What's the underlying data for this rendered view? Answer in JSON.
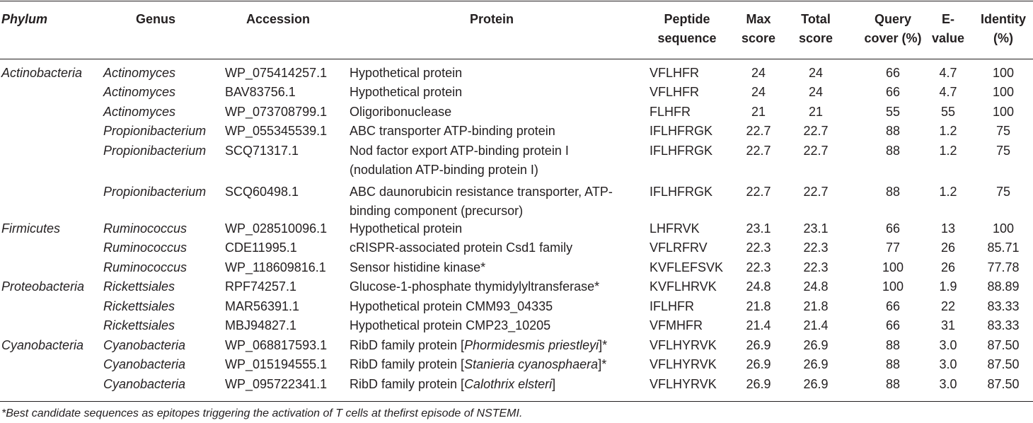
{
  "table": {
    "headers": {
      "phylum": "Phylum",
      "genus": "Genus",
      "accession": "Accession",
      "protein": "Protein",
      "peptide_1": "Peptide",
      "peptide_2": "sequence",
      "max_1": "Max",
      "max_2": "score",
      "total_1": "Total",
      "total_2": "score",
      "query_1": "Query",
      "query_2": "cover (%)",
      "evalue_1": "E-",
      "evalue_2": "value",
      "identity_1": "Identity",
      "identity_2": "(%)"
    },
    "rows": [
      {
        "phylum": "Actinobacteria",
        "genus": "Actinomyces",
        "accession": "WP_075414257.1",
        "protein_pre": "Hypothetical protein",
        "protein_it": "",
        "protein_post": "",
        "protein_line2": "",
        "peptide": "VFLHFR",
        "max": "24",
        "total": "24",
        "query": "66",
        "evalue": "4.7",
        "identity": "100"
      },
      {
        "phylum": "",
        "genus": "Actinomyces",
        "accession": "BAV83756.1",
        "protein_pre": "Hypothetical protein",
        "protein_it": "",
        "protein_post": "",
        "protein_line2": "",
        "peptide": "VFLHFR",
        "max": "24",
        "total": "24",
        "query": "66",
        "evalue": "4.7",
        "identity": "100"
      },
      {
        "phylum": "",
        "genus": "Actinomyces",
        "accession": "WP_073708799.1",
        "protein_pre": "Oligoribonuclease",
        "protein_it": "",
        "protein_post": "",
        "protein_line2": "",
        "peptide": "FLHFR",
        "max": "21",
        "total": "21",
        "query": "55",
        "evalue": "55",
        "identity": "100"
      },
      {
        "phylum": "",
        "genus": "Propionibacterium",
        "accession": "WP_055345539.1",
        "protein_pre": "ABC transporter ATP-binding protein",
        "protein_it": "",
        "protein_post": "",
        "protein_line2": "",
        "peptide": "IFLHFRGK",
        "max": "22.7",
        "total": "22.7",
        "query": "88",
        "evalue": "1.2",
        "identity": "75"
      },
      {
        "phylum": "",
        "genus": "Propionibacterium",
        "accession": "SCQ71317.1",
        "protein_pre": "Nod factor export ATP-binding protein I",
        "protein_it": "",
        "protein_post": "",
        "protein_line2": "(nodulation ATP-binding protein I)",
        "peptide": "IFLHFRGK",
        "max": "22.7",
        "total": "22.7",
        "query": "88",
        "evalue": "1.2",
        "identity": "75"
      },
      {
        "phylum": "",
        "genus": "Propionibacterium",
        "accession": "SCQ60498.1",
        "protein_pre": "ABC daunorubicin resistance transporter, ATP-",
        "protein_it": "",
        "protein_post": "",
        "protein_line2": "binding component (precursor)",
        "peptide": "IFLHFRGK",
        "max": "22.7",
        "total": "22.7",
        "query": "88",
        "evalue": "1.2",
        "identity": "75"
      },
      {
        "phylum": "Firmicutes",
        "genus": "Ruminococcus",
        "accession": "WP_028510096.1",
        "protein_pre": "Hypothetical protein",
        "protein_it": "",
        "protein_post": "",
        "protein_line2": "",
        "peptide": "LHFRVK",
        "max": "23.1",
        "total": "23.1",
        "query": "66",
        "evalue": "13",
        "identity": "100"
      },
      {
        "phylum": "",
        "genus": "Ruminococcus",
        "accession": "CDE11995.1",
        "protein_pre": "cRISPR-associated protein Csd1 family",
        "protein_it": "",
        "protein_post": "",
        "protein_line2": "",
        "peptide": "VFLRFRV",
        "max": "22.3",
        "total": "22.3",
        "query": "77",
        "evalue": "26",
        "identity": "85.71"
      },
      {
        "phylum": "",
        "genus": "Ruminococcus",
        "accession": "WP_118609816.1",
        "protein_pre": "Sensor histidine kinase*",
        "protein_it": "",
        "protein_post": "",
        "protein_line2": "",
        "peptide": "KVFLEFSVK",
        "max": "22.3",
        "total": "22.3",
        "query": "100",
        "evalue": "26",
        "identity": "77.78"
      },
      {
        "phylum": "Proteobacteria",
        "genus": "Rickettsiales",
        "accession": "RPF74257.1",
        "protein_pre": "Glucose-1-phosphate thymidylyltransferase*",
        "protein_it": "",
        "protein_post": "",
        "protein_line2": "",
        "peptide": "KVFLHRVK",
        "max": "24.8",
        "total": "24.8",
        "query": "100",
        "evalue": "1.9",
        "identity": "88.89"
      },
      {
        "phylum": "",
        "genus": "Rickettsiales",
        "accession": "MAR56391.1",
        "protein_pre": "Hypothetical protein CMM93_04335",
        "protein_it": "",
        "protein_post": "",
        "protein_line2": "",
        "peptide": "IFLHFR",
        "max": "21.8",
        "total": "21.8",
        "query": "66",
        "evalue": "22",
        "identity": "83.33"
      },
      {
        "phylum": "",
        "genus": "Rickettsiales",
        "accession": "MBJ94827.1",
        "protein_pre": "Hypothetical protein CMP23_10205",
        "protein_it": "",
        "protein_post": "",
        "protein_line2": "",
        "peptide": "VFMHFR",
        "max": "21.4",
        "total": "21.4",
        "query": "66",
        "evalue": "31",
        "identity": "83.33"
      },
      {
        "phylum": "Cyanobacteria",
        "genus": "Cyanobacteria",
        "accession": "WP_068817593.1",
        "protein_pre": "RibD family protein [",
        "protein_it": "Phormidesmis priestleyi",
        "protein_post": "]*",
        "protein_line2": "",
        "peptide": "VFLHYRVK",
        "max": "26.9",
        "total": "26.9",
        "query": "88",
        "evalue": "3.0",
        "identity": "87.50"
      },
      {
        "phylum": "",
        "genus": "Cyanobacteria",
        "accession": "WP_015194555.1",
        "protein_pre": "RibD family protein [",
        "protein_it": "Stanieria cyanosphaera",
        "protein_post": "]*",
        "protein_line2": "",
        "peptide": "VFLHYRVK",
        "max": "26.9",
        "total": "26.9",
        "query": "88",
        "evalue": "3.0",
        "identity": "87.50"
      },
      {
        "phylum": "",
        "genus": "Cyanobacteria",
        "accession": "WP_095722341.1",
        "protein_pre": "RibD family protein [",
        "protein_it": "Calothrix elsteri",
        "protein_post": "]",
        "protein_line2": "",
        "peptide": "VFLHYRVK",
        "max": "26.9",
        "total": "26.9",
        "query": "88",
        "evalue": "3.0",
        "identity": "87.50"
      }
    ],
    "footnote": "*Best candidate sequences as epitopes triggering the activation of T cells at thefirst episode of NSTEMI."
  }
}
